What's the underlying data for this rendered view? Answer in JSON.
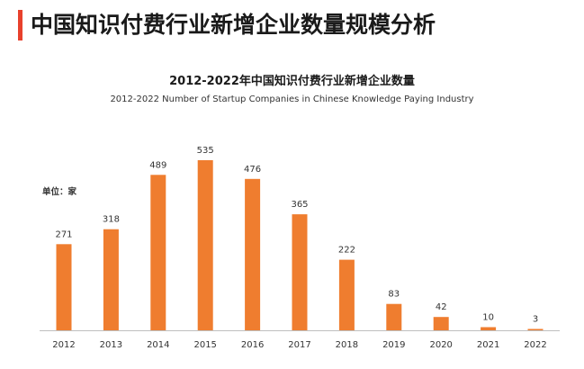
{
  "header": {
    "title": "中国知识付费行业新增企业数量规模分析"
  },
  "colors": {
    "accent": "#e8412c",
    "bar": "#ef7d2f",
    "axis": "#bfbfbf"
  },
  "chart_data": {
    "type": "bar",
    "title": "2012-2022年中国知识付费行业新增企业数量",
    "subtitle": "2012-2022 Number of Startup Companies in Chinese Knowledge Paying Industry",
    "unit": "单位：家",
    "xlabel": "",
    "ylabel": "",
    "categories": [
      "2012",
      "2013",
      "2014",
      "2015",
      "2016",
      "2017",
      "2018",
      "2019",
      "2020",
      "2021",
      "2022"
    ],
    "values": [
      271,
      318,
      489,
      535,
      476,
      365,
      222,
      83,
      42,
      10,
      3
    ],
    "ylim": [
      0,
      535
    ],
    "grid": false,
    "legend": "none"
  }
}
